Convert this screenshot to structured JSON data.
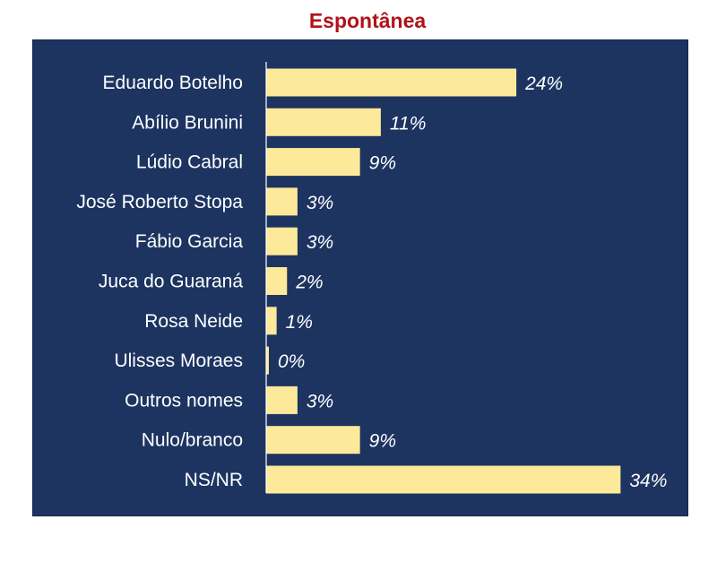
{
  "colors": {
    "title": "#b0121a",
    "panel_background": "#1d3461",
    "bar": "#fde99a",
    "label_text": "#ffffff",
    "axis_line": "#ffffff"
  },
  "chart_data": {
    "type": "bar",
    "orientation": "horizontal",
    "title": "Espontânea",
    "categories": [
      "Eduardo Botelho",
      "Abílio Brunini",
      "Lúdio Cabral",
      "José Roberto Stopa",
      "Fábio Garcia",
      "Juca do Guaraná",
      "Rosa Neide",
      "Ulisses Moraes",
      "Outros nomes",
      "Nulo/branco",
      "NS/NR"
    ],
    "values": [
      24,
      11,
      9,
      3,
      3,
      2,
      1,
      0,
      3,
      9,
      34
    ],
    "value_labels": [
      "24%",
      "11%",
      "9%",
      "3%",
      "3%",
      "2%",
      "1%",
      "0%",
      "3%",
      "9%",
      "34%"
    ],
    "unit": "%",
    "xlabel": "",
    "ylabel": "",
    "xlim": [
      0,
      35
    ],
    "grid": false,
    "legend": "none"
  }
}
